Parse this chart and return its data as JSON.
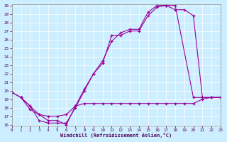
{
  "xlabel": "Windchill (Refroidissement éolien,°C)",
  "bg_color": "#cceeff",
  "line_color": "#990099",
  "grid_color": "#aaddcc",
  "xlim": [
    0,
    23
  ],
  "ylim": [
    16,
    30
  ],
  "xticks": [
    0,
    1,
    2,
    3,
    4,
    5,
    6,
    7,
    8,
    9,
    10,
    11,
    12,
    13,
    14,
    15,
    16,
    17,
    18,
    19,
    20,
    21,
    22,
    23
  ],
  "yticks": [
    16,
    17,
    18,
    19,
    20,
    21,
    22,
    23,
    24,
    25,
    26,
    27,
    28,
    29,
    30
  ],
  "line1_x": [
    0,
    1,
    2,
    3,
    4,
    5,
    6,
    7,
    8,
    9,
    10,
    11,
    12,
    13,
    14,
    15,
    16,
    17,
    18,
    20,
    21,
    22,
    23
  ],
  "line1_y": [
    19.8,
    19.2,
    17.8,
    17.2,
    16.5,
    16.5,
    16.0,
    18.2,
    20.2,
    22.0,
    23.2,
    26.5,
    26.5,
    27.0,
    27.0,
    28.8,
    29.8,
    30.0,
    30.0,
    19.2,
    19.2,
    19.2,
    19.2
  ],
  "line2_x": [
    0,
    1,
    2,
    3,
    4,
    5,
    6,
    7,
    8,
    9,
    10,
    11,
    12,
    13,
    14,
    15,
    16,
    17,
    18,
    19,
    20,
    21,
    22,
    23
  ],
  "line2_y": [
    19.8,
    19.2,
    18.2,
    16.5,
    16.2,
    16.2,
    16.2,
    18.0,
    20.0,
    22.0,
    23.5,
    25.8,
    26.8,
    27.2,
    27.2,
    29.2,
    30.0,
    30.0,
    29.5,
    29.5,
    28.8,
    19.2,
    19.2,
    19.2
  ],
  "line3_x": [
    1,
    2,
    3,
    4,
    5,
    6,
    7,
    8,
    9,
    10,
    11,
    12,
    13,
    14,
    15,
    16,
    17,
    18,
    19,
    20,
    21,
    22,
    23
  ],
  "line3_y": [
    19.2,
    18.2,
    17.2,
    17.0,
    17.0,
    17.2,
    18.2,
    18.5,
    18.5,
    18.5,
    18.5,
    18.5,
    18.5,
    18.5,
    18.5,
    18.5,
    18.5,
    18.5,
    18.5,
    18.5,
    19.0,
    19.2,
    19.2
  ]
}
